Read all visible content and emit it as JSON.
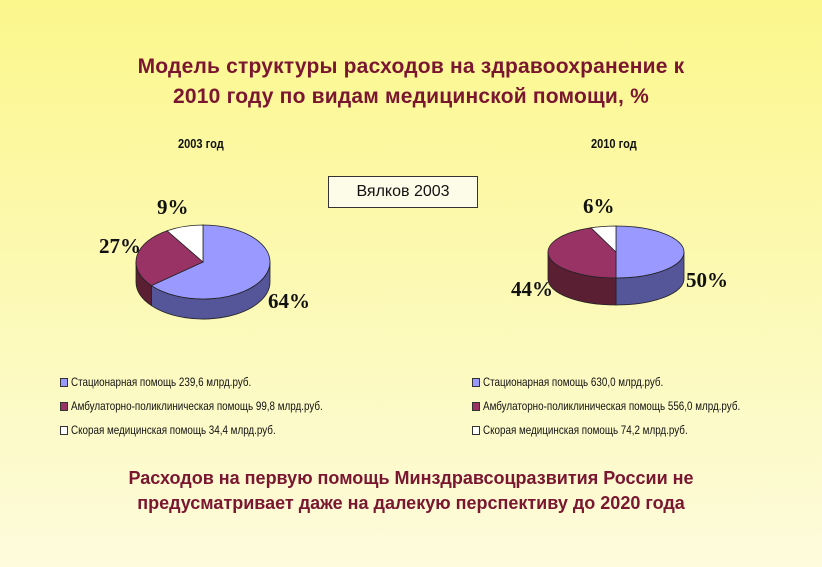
{
  "title_line1": "Модель структуры расходов на здравоохранение к",
  "title_line2": "2010 году по видам медицинской помощи, %",
  "source_label": "Вялков   2003",
  "footer_line1": "Расходов на первую помощь Минздравсоцразвития России не",
  "footer_line2": "предусматривает даже на далекую перспективу до 2020 года",
  "colors": {
    "inpatient": "#9999ff",
    "outpatient": "#993366",
    "ambulance": "#ffffff"
  },
  "chart_data": [
    {
      "type": "pie",
      "title": "2003 год",
      "labels": [
        "Стационарная помощь 239,6 млрд.руб.",
        "Амбулаторно-поликлиническая помощь 99,8 млрд.руб.",
        "Скорая медицинская помощь 34,4 млрд.руб."
      ],
      "values": [
        64,
        27,
        9
      ],
      "value_labels": [
        "64%",
        "27%",
        "9%"
      ],
      "legend": "bottom"
    },
    {
      "type": "pie",
      "title": "2010 год",
      "labels": [
        "Стационарная помощь 630,0 млрд.руб.",
        "Амбулаторно-поликлиническая помощь 556,0 млрд.руб.",
        "Скорая медицинская помощь 74,2 млрд.руб."
      ],
      "values": [
        50,
        44,
        6
      ],
      "value_labels": [
        "50%",
        "44%",
        "6%"
      ],
      "legend": "bottom"
    }
  ]
}
